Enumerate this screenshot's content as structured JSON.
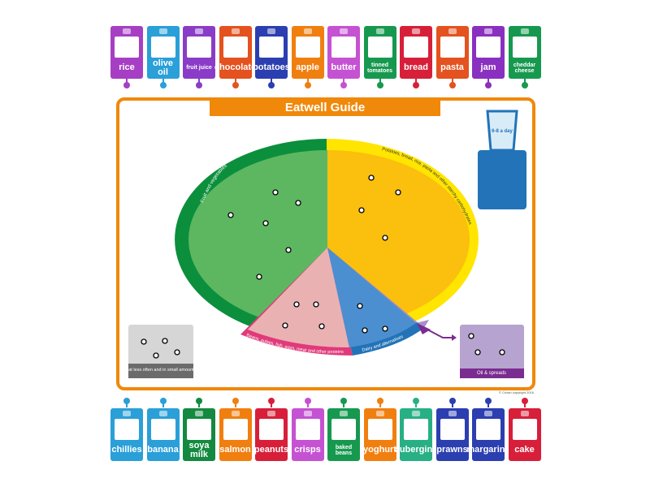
{
  "top_tiles": [
    {
      "label": "rice",
      "color": "#a63fc4"
    },
    {
      "label": "olive oil",
      "color": "#2a9fd8"
    },
    {
      "label": "fruit juice",
      "color": "#8a3cc8"
    },
    {
      "label": "chocolate",
      "color": "#e4521f"
    },
    {
      "label": "potatoes",
      "color": "#2b3fb0"
    },
    {
      "label": "apple",
      "color": "#f07f10"
    },
    {
      "label": "butter",
      "color": "#c552d2"
    },
    {
      "label": "tinned tomatoes",
      "color": "#16994f"
    },
    {
      "label": "bread",
      "color": "#d71f3a"
    },
    {
      "label": "pasta",
      "color": "#e4521f"
    },
    {
      "label": "jam",
      "color": "#8a30c0"
    },
    {
      "label": "cheddar cheese",
      "color": "#16994f"
    }
  ],
  "bottom_tiles": [
    {
      "label": "chillies",
      "color": "#2a9fd8"
    },
    {
      "label": "banana",
      "color": "#2a9fd8"
    },
    {
      "label": "soya milk",
      "color": "#138a40"
    },
    {
      "label": "salmon",
      "color": "#f07f10"
    },
    {
      "label": "peanuts",
      "color": "#d71f3a"
    },
    {
      "label": "crisps",
      "color": "#c552d2"
    },
    {
      "label": "baked beans",
      "color": "#16994f"
    },
    {
      "label": "yoghurt",
      "color": "#f07f10"
    },
    {
      "label": "aubergine",
      "color": "#28b084"
    },
    {
      "label": "prawns",
      "color": "#2b3fb0"
    },
    {
      "label": "margarine",
      "color": "#2b3fb0"
    },
    {
      "label": "cake",
      "color": "#d71f3a"
    }
  ],
  "diagram": {
    "title": "Eatwell Guide",
    "glass_label": "6-8 a day",
    "fruit_veg": "Fruit and vegetables",
    "starchy": "Potatoes, bread, rice, pasta and other starchy carbohydrates",
    "proteins": "Beans, pulses, fish, eggs, meat and other proteins",
    "dairy": "Dairy and alternatives",
    "oil": "Oil & spreads",
    "less_often": "Eat less often and in small amounts",
    "copyright": "© Crown copyright 2016"
  }
}
